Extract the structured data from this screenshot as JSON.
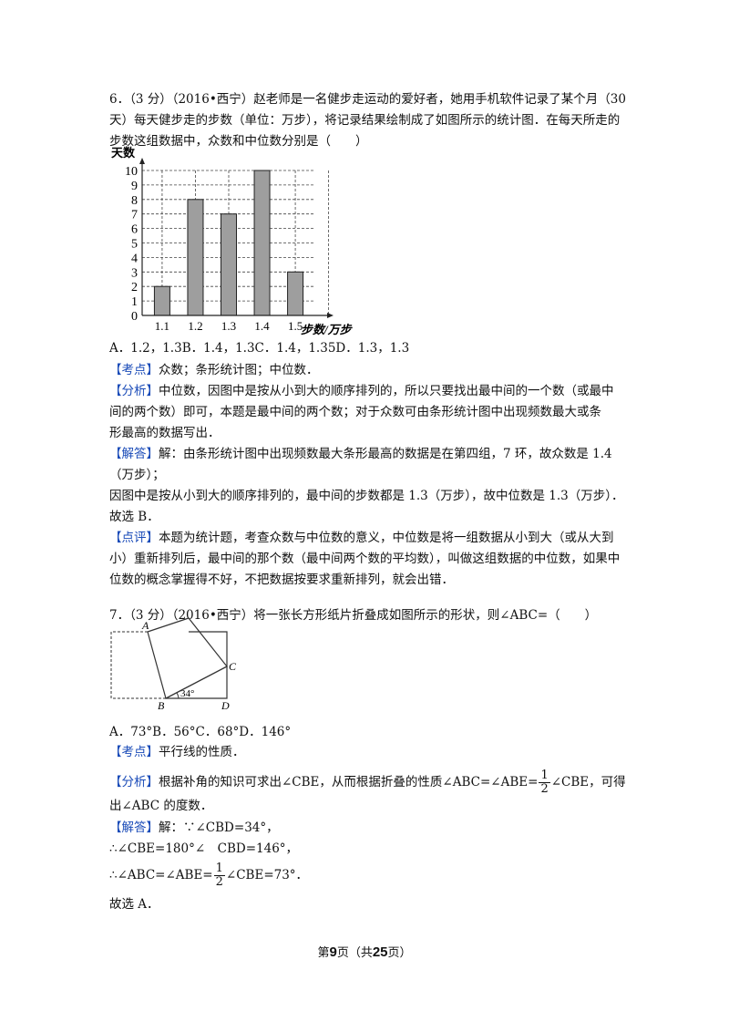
{
  "q6": {
    "line1": "6．（3 分）（2016•西宁）赵老师是一名健步走运动的爱好者，她用手机软件记录了某个月（30",
    "line2": "天）每天健步走的步数（单位：万步），将记录结果绘制成了如图所示的统计图．在每天所走的",
    "line3": "步数这组数据中，众数和中位数分别是（　　）",
    "options": "A．1.2，1.3B．1.4，1.3C．1.4，1.35D．1.3，1.3",
    "kaodian_tag": "【考点】",
    "kaodian": "众数；条形统计图；中位数．",
    "fenxi_tag": "【分析】",
    "fenxi1": "中位数，因图中是按从小到大的顺序排列的，所以只要找出最中间的一个数（或最中",
    "fenxi2": "间的两个数）即可，本题是最中间的两个数；对于众数可由条形统计图中出现频数最大或条",
    "fenxi3": "形最高的数据写出．",
    "jieda_tag": "【解答】",
    "jieda1": "解：由条形统计图中出现频数最大条形最高的数据是在第四组，7 环，故众数是 1.4",
    "jieda2": "（万步）；",
    "jieda3": "因图中是按从小到大的顺序排列的，最中间的步数都是 1.3（万步），故中位数是 1.3（万步）．",
    "jieda4": "故选 B．",
    "dianping_tag": "【点评】",
    "dianping1": "本题为统计题，考查众数与中位数的意义，中位数是将一组数据从小到大（或从大到",
    "dianping2": "小）重新排列后，最中间的那个数（最中间两个数的平均数），叫做这组数据的中位数，如果中",
    "dianping3": "位数的概念掌握得不好，不把数据按要求重新排列，就会出错．"
  },
  "chart_data": {
    "type": "bar",
    "categories": [
      "1.1",
      "1.2",
      "1.3",
      "1.4",
      "1.5"
    ],
    "values": [
      2,
      8,
      7,
      10,
      3
    ],
    "xlabel": "步数/万步",
    "ylabel": "天数",
    "ylim": [
      0,
      10
    ],
    "yticks": [
      "0",
      "1",
      "2",
      "3",
      "4",
      "5",
      "6",
      "7",
      "8",
      "9",
      "10"
    ],
    "grid": true,
    "bar_color": "#9e9e9e"
  },
  "q7": {
    "line1": "7．（3 分）（2016•西宁）将一张长方形纸片折叠成如图所示的形状，则∠ABC=（　　）",
    "figure": {
      "label_a": "A",
      "label_b": "B",
      "label_c": "C",
      "label_d": "D",
      "angle": "34°"
    },
    "options": "A．73°B．56°C．68°D．146°",
    "kaodian_tag": "【考点】",
    "kaodian": "平行线的性质．",
    "fenxi_tag": "【分析】",
    "fenxi1_pre": "根据补角的知识可求出∠CBE，从而根据折叠的性质∠ABC=∠ABE=",
    "fenxi1_post": "∠CBE，可得",
    "frac_num": "1",
    "frac_den": "2",
    "fenxi2": "出∠ABC 的度数．",
    "jieda_tag": "【解答】",
    "jieda1": "解：∵∠CBD=34°，",
    "jieda2": "∴∠CBE=180°∠　CBD=146°，",
    "jieda3_pre": "∴∠ABC=∠ABE=",
    "jieda3_post": "∠CBE=73°．",
    "jieda4": "故选 A．"
  },
  "footer": {
    "pre": "第",
    "page": "9",
    "mid": "页（共",
    "total": "25",
    "post": "页）"
  }
}
